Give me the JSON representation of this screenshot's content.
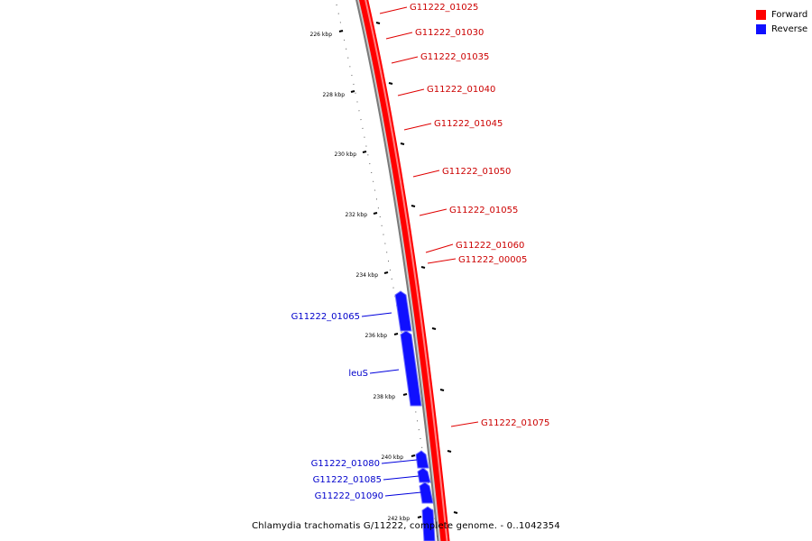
{
  "legend": {
    "forward": {
      "label": "Forward",
      "color": "#ff0000"
    },
    "reverse": {
      "label": "Reverse",
      "color": "#1010ff"
    }
  },
  "caption": "Chlamydia trachomatis G/11222, complete genome. - 0..1042354",
  "ticks": [
    "226 kbp",
    "228 kbp",
    "230 kbp",
    "232 kbp",
    "234 kbp",
    "236 kbp",
    "238 kbp",
    "240 kbp",
    "242 kbp"
  ],
  "forward_genes": [
    "G11222_01025",
    "G11222_01030",
    "G11222_01035",
    "G11222_01040",
    "G11222_01045",
    "G11222_01050",
    "G11222_01055",
    "G11222_01060",
    "G11222_00005",
    "G11222_01075"
  ],
  "reverse_genes": [
    "G11222_01065",
    "leuS",
    "G11222_01080",
    "G11222_01085",
    "G11222_01090"
  ]
}
